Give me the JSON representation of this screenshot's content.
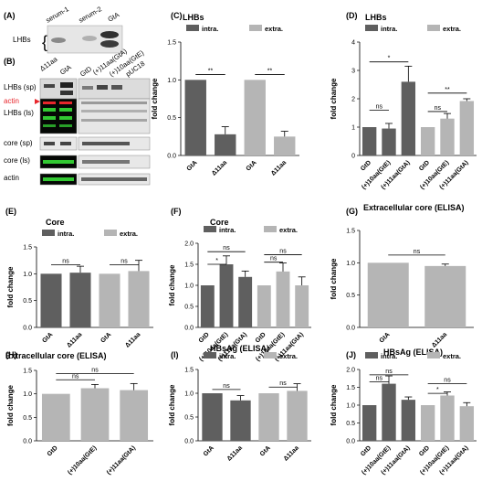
{
  "colors": {
    "intra": "#5f5f5f",
    "extra": "#b5b5b5",
    "actin_label": "#e8262c",
    "green_band": "#32c832"
  },
  "blots": {
    "A": {
      "label": "(A)",
      "lanes": [
        "serum-1",
        "serum-2",
        "GtA"
      ],
      "row_label": "LHBs"
    },
    "B": {
      "label": "(B)",
      "lanes_left": [
        "Δ11aa",
        "GtA"
      ],
      "lanes_right": [
        "GtD",
        "(+)11aa(GtA)",
        "(+)10aa(GtE)",
        "pUC18"
      ],
      "rows": [
        "LHBs (sp)",
        "actin",
        "LHBs (ls)",
        "core (sp)",
        "core (ls)",
        "actin"
      ]
    }
  },
  "chart_data": [
    {
      "panel": "(C)",
      "type": "bar",
      "title": "LHBs",
      "ylabel": "fold change",
      "ylim": [
        0,
        1.5
      ],
      "ticks": [
        "0.0",
        "0.5",
        "1.0",
        "1.5"
      ],
      "categories": [
        "GtA",
        "Δ11aa",
        "GtA",
        "Δ11aa"
      ],
      "values": [
        1.0,
        0.28,
        1.0,
        0.25
      ],
      "errors": [
        0,
        0.1,
        0,
        0.07
      ],
      "groups": [
        "intra",
        "intra",
        "extra",
        "extra"
      ],
      "legend": [
        "intra.",
        "extra."
      ],
      "sig": [
        {
          "a": 0,
          "b": 1,
          "label": "**",
          "level": 1.07
        },
        {
          "a": 2,
          "b": 3,
          "label": "**",
          "level": 1.07
        }
      ]
    },
    {
      "panel": "(D)",
      "type": "bar",
      "title": "LHBs",
      "ylabel": "fold change",
      "ylim": [
        0,
        4
      ],
      "ticks": [
        "0",
        "1",
        "2",
        "3",
        "4"
      ],
      "categories": [
        "GtD",
        "(+)10aa(GtE)",
        "(+)11aa(GtA)",
        "GtD",
        "(+)10aa(GtE)",
        "(+)11aa(GtA)"
      ],
      "values": [
        1.0,
        0.95,
        2.6,
        1.0,
        1.3,
        1.92
      ],
      "errors": [
        0,
        0.18,
        0.55,
        0,
        0.18,
        0.08
      ],
      "groups": [
        "intra",
        "intra",
        "intra",
        "extra",
        "extra",
        "extra"
      ],
      "legend": [
        "intra.",
        "extra."
      ],
      "sig": [
        {
          "a": 0,
          "b": 1,
          "label": "ns",
          "level": 1.6
        },
        {
          "a": 0,
          "b": 2,
          "label": "*",
          "level": 3.3
        },
        {
          "a": 3,
          "b": 4,
          "label": "ns",
          "level": 1.55
        },
        {
          "a": 3,
          "b": 5,
          "label": "**",
          "level": 2.2
        }
      ]
    },
    {
      "panel": "(E)",
      "type": "bar",
      "title": "Core",
      "ylabel": "fold change",
      "ylim": [
        0,
        1.5
      ],
      "ticks": [
        "0.0",
        "0.5",
        "1.0",
        "1.5"
      ],
      "categories": [
        "GtA",
        "Δ11aa",
        "GtA",
        "Δ11aa"
      ],
      "values": [
        1.0,
        1.02,
        1.0,
        1.05
      ],
      "errors": [
        0,
        0.12,
        0,
        0.2
      ],
      "groups": [
        "intra",
        "intra",
        "extra",
        "extra"
      ],
      "legend": [
        "intra.",
        "extra."
      ],
      "sig": [
        {
          "a": 0,
          "b": 1,
          "label": "ns",
          "level": 1.17
        },
        {
          "a": 2,
          "b": 3,
          "label": "ns",
          "level": 1.17
        }
      ]
    },
    {
      "panel": "(F)",
      "type": "bar",
      "title": "Core",
      "ylabel": "fold change",
      "ylim": [
        0,
        2.0
      ],
      "ticks": [
        "0.0",
        "0.5",
        "1.0",
        "1.5",
        "2.0"
      ],
      "categories": [
        "GtD",
        "(+)10aa(GtE)",
        "(+)11aa(GtA)",
        "GtD",
        "(+)10aa(GtE)",
        "(+)11aa(GtA)"
      ],
      "values": [
        1.0,
        1.5,
        1.2,
        1.0,
        1.33,
        1.0
      ],
      "errors": [
        0,
        0.2,
        0.14,
        0,
        0.2,
        0.2
      ],
      "groups": [
        "intra",
        "intra",
        "intra",
        "extra",
        "extra",
        "extra"
      ],
      "legend": [
        "intra.",
        "extra."
      ],
      "sig": [
        {
          "a": 0,
          "b": 1,
          "label": "*",
          "level": 1.5
        },
        {
          "a": 0,
          "b": 2,
          "label": "ns",
          "level": 1.8
        },
        {
          "a": 3,
          "b": 4,
          "label": "ns",
          "level": 1.55
        },
        {
          "a": 3,
          "b": 5,
          "label": "ns",
          "level": 1.73
        }
      ]
    },
    {
      "panel": "(G)",
      "type": "bar",
      "title": "Extracellular core (ELISA)",
      "ylabel": "fold change",
      "ylim": [
        0,
        1.5
      ],
      "ticks": [
        "0.0",
        "0.5",
        "1.0",
        "1.5"
      ],
      "categories": [
        "GtA",
        "Δ11aa"
      ],
      "values": [
        1.0,
        0.95
      ],
      "errors": [
        0,
        0.03
      ],
      "groups": [
        "extra",
        "extra"
      ],
      "legend": [],
      "sig": [
        {
          "a": 0,
          "b": 1,
          "label": "ns",
          "level": 1.12
        }
      ]
    },
    {
      "panel": "(H)",
      "type": "bar",
      "title": "Extracellular core (ELISA)",
      "ylabel": "fold change",
      "ylim": [
        0,
        1.5
      ],
      "ticks": [
        "0.0",
        "0.5",
        "1.0",
        "1.5"
      ],
      "categories": [
        "GtD",
        "(+)10aa(GtE)",
        "(+)11aa(GtA)"
      ],
      "values": [
        1.0,
        1.12,
        1.08
      ],
      "errors": [
        0,
        0.08,
        0.14
      ],
      "groups": [
        "extra",
        "extra",
        "extra"
      ],
      "legend": [],
      "sig": [
        {
          "a": 0,
          "b": 1,
          "label": "ns",
          "level": 1.3
        },
        {
          "a": 0,
          "b": 2,
          "label": "ns",
          "level": 1.43
        }
      ]
    },
    {
      "panel": "(I)",
      "type": "bar",
      "title": "HBsAg (ELISA)",
      "ylabel": "fold change",
      "ylim": [
        0,
        1.5
      ],
      "ticks": [
        "0.0",
        "0.5",
        "1.0",
        "1.5"
      ],
      "categories": [
        "GtA",
        "Δ11aa",
        "GtA",
        "Δ11aa"
      ],
      "values": [
        1.0,
        0.85,
        1.0,
        1.05
      ],
      "errors": [
        0,
        0.1,
        0,
        0.15
      ],
      "groups": [
        "intra",
        "intra",
        "extra",
        "extra"
      ],
      "legend": [
        "intra.",
        "extra."
      ],
      "sig": [
        {
          "a": 0,
          "b": 1,
          "label": "ns",
          "level": 1.08
        },
        {
          "a": 2,
          "b": 3,
          "label": "ns",
          "level": 1.13
        }
      ]
    },
    {
      "panel": "(J)",
      "type": "bar",
      "title": "HBsAg (ELISA)",
      "ylabel": "fold change",
      "ylim": [
        0,
        2.0
      ],
      "ticks": [
        "0.0",
        "0.5",
        "1.0",
        "1.5",
        "2.0"
      ],
      "categories": [
        "GtD",
        "(+)10aa(GtE)",
        "(+)11aa(GtA)",
        "GtD",
        "(+)10aa(GtE)",
        "(+)11aa(GtA)"
      ],
      "values": [
        1.0,
        1.6,
        1.15,
        1.0,
        1.27,
        0.97
      ],
      "errors": [
        0,
        0.22,
        0.08,
        0,
        0.1,
        0.1
      ],
      "groups": [
        "intra",
        "intra",
        "intra",
        "extra",
        "extra",
        "extra"
      ],
      "legend": [
        "intra.",
        "extra."
      ],
      "sig": [
        {
          "a": 0,
          "b": 1,
          "label": "ns",
          "level": 1.65
        },
        {
          "a": 0,
          "b": 2,
          "label": "ns",
          "level": 1.85
        },
        {
          "a": 3,
          "b": 4,
          "label": "*",
          "level": 1.33
        },
        {
          "a": 3,
          "b": 5,
          "label": "ns",
          "level": 1.6
        }
      ]
    }
  ]
}
